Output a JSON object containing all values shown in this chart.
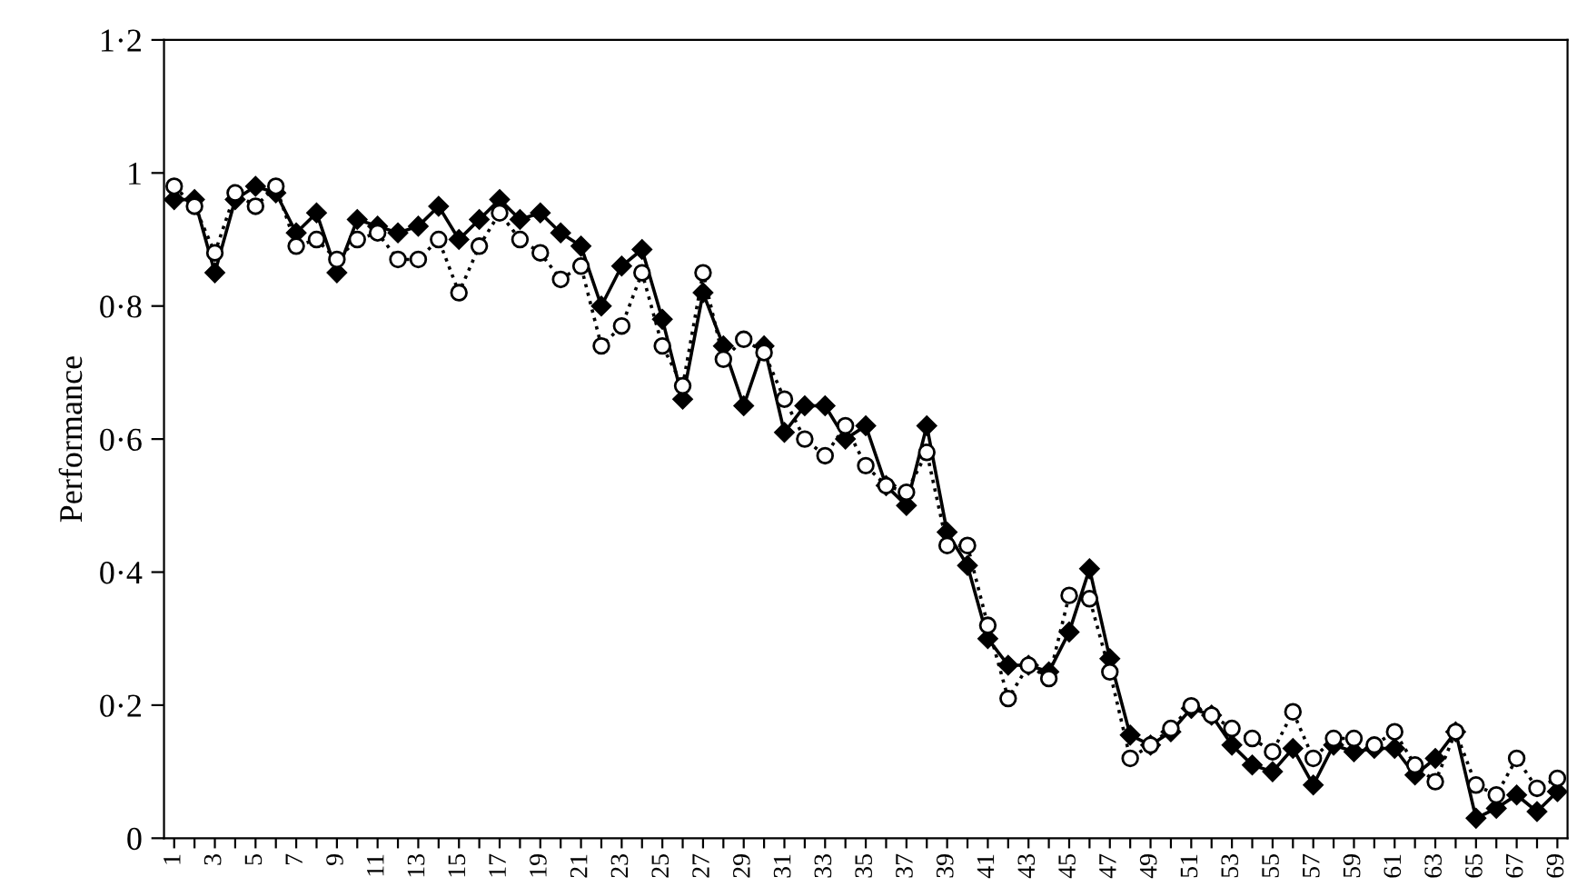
{
  "chart_data": {
    "type": "line",
    "ylabel": "Performance",
    "categories": [
      "1",
      null,
      "3",
      null,
      "5",
      null,
      "7",
      null,
      "9",
      null,
      "11",
      null,
      "13",
      null,
      "15",
      null,
      "17",
      null,
      "19",
      null,
      "21",
      null,
      "23",
      null,
      "25",
      null,
      "27",
      null,
      "29",
      null,
      "31",
      null,
      "33",
      null,
      "35",
      null,
      "37",
      null,
      "39",
      null,
      "41",
      null,
      "43",
      null,
      "45",
      null,
      "47",
      null,
      "49",
      null,
      "51",
      null,
      "53",
      null,
      "55",
      null,
      "57",
      null,
      "59",
      null,
      "61",
      null,
      "63",
      null,
      "65",
      null,
      "67",
      null,
      "69"
    ],
    "series": [
      {
        "color": "#000000",
        "marker": "diamond",
        "line_style": "solid",
        "values": [
          0.96,
          0.96,
          0.85,
          0.96,
          0.98,
          0.97,
          0.91,
          0.94,
          0.85,
          0.93,
          0.92,
          0.91,
          0.92,
          0.95,
          0.9,
          0.93,
          0.96,
          0.93,
          0.94,
          0.91,
          0.89,
          0.8,
          0.86,
          0.885,
          0.78,
          0.66,
          0.82,
          0.74,
          0.65,
          0.74,
          0.61,
          0.65,
          0.65,
          0.6,
          0.62,
          0.53,
          0.5,
          0.62,
          0.46,
          0.41,
          0.3,
          0.26,
          0.26,
          0.25,
          0.31,
          0.405,
          0.27,
          0.155,
          0.14,
          0.16,
          0.195,
          0.185,
          0.14,
          0.11,
          0.1,
          0.135,
          0.08,
          0.14,
          0.13,
          0.135,
          0.135,
          0.095,
          0.12,
          0.16,
          0.03,
          0.045,
          0.065,
          0.04,
          0.07
        ]
      },
      {
        "color": "#000000",
        "marker": "circle",
        "line_style": "dotted",
        "values": [
          0.98,
          0.95,
          0.88,
          0.97,
          0.95,
          0.98,
          0.89,
          0.9,
          0.87,
          0.9,
          0.91,
          0.87,
          0.87,
          0.9,
          0.82,
          0.89,
          0.94,
          0.9,
          0.88,
          0.84,
          0.86,
          0.74,
          0.77,
          0.85,
          0.74,
          0.68,
          0.85,
          0.72,
          0.75,
          0.73,
          0.66,
          0.6,
          0.575,
          0.62,
          0.56,
          0.53,
          0.52,
          0.58,
          0.44,
          0.44,
          0.32,
          0.21,
          0.26,
          0.24,
          0.365,
          0.36,
          0.25,
          0.12,
          0.14,
          0.165,
          0.199,
          0.185,
          0.165,
          0.15,
          0.13,
          0.19,
          0.12,
          0.15,
          0.15,
          0.14,
          0.16,
          0.11,
          0.085,
          0.16,
          0.08,
          0.065,
          0.12,
          0.075,
          0.09
        ]
      }
    ],
    "ylim": [
      0,
      1.2
    ],
    "yticks": [
      0,
      {
        "value": 0.2,
        "label": "0·2"
      },
      {
        "value": 0.4,
        "label": "0·4"
      },
      {
        "value": 0.6,
        "label": "0·6"
      },
      {
        "value": 0.8,
        "label": "0·8"
      },
      1,
      {
        "value": 1.2,
        "label": "1·2"
      }
    ],
    "grid": false,
    "legend": false
  }
}
